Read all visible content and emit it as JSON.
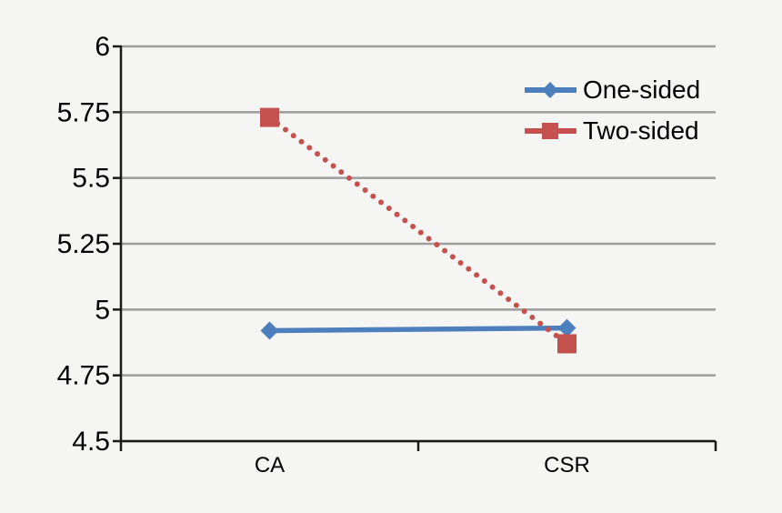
{
  "figure": {
    "background_color": "#f5f5f4",
    "gridline_color": "#9d9d9d",
    "axis_color": "#1a1a1a",
    "label_color": "#000000"
  },
  "chart_data": {
    "type": "line",
    "title": "",
    "xlabel": "",
    "ylabel": "",
    "categories": [
      "CA",
      "CSR"
    ],
    "series": [
      {
        "name": "One-sided",
        "values": [
          4.92,
          4.93
        ],
        "color": "#4c7fbc",
        "marker": "diamond",
        "line_style": "solid"
      },
      {
        "name": "Two-sided",
        "values": [
          5.73,
          4.87
        ],
        "color": "#c4514e",
        "marker": "square",
        "line_style": "dotted"
      }
    ],
    "ylim": [
      4.5,
      6
    ],
    "yticks": [
      {
        "value": 4.5,
        "label": "4.5"
      },
      {
        "value": 4.75,
        "label": "4.75"
      },
      {
        "value": 5,
        "label": "5"
      },
      {
        "value": 5.25,
        "label": "5.25"
      },
      {
        "value": 5.5,
        "label": "5.5"
      },
      {
        "value": 5.75,
        "label": "5.75"
      },
      {
        "value": 6,
        "label": "6"
      }
    ],
    "grid": true,
    "legend_position": "upper-right"
  }
}
